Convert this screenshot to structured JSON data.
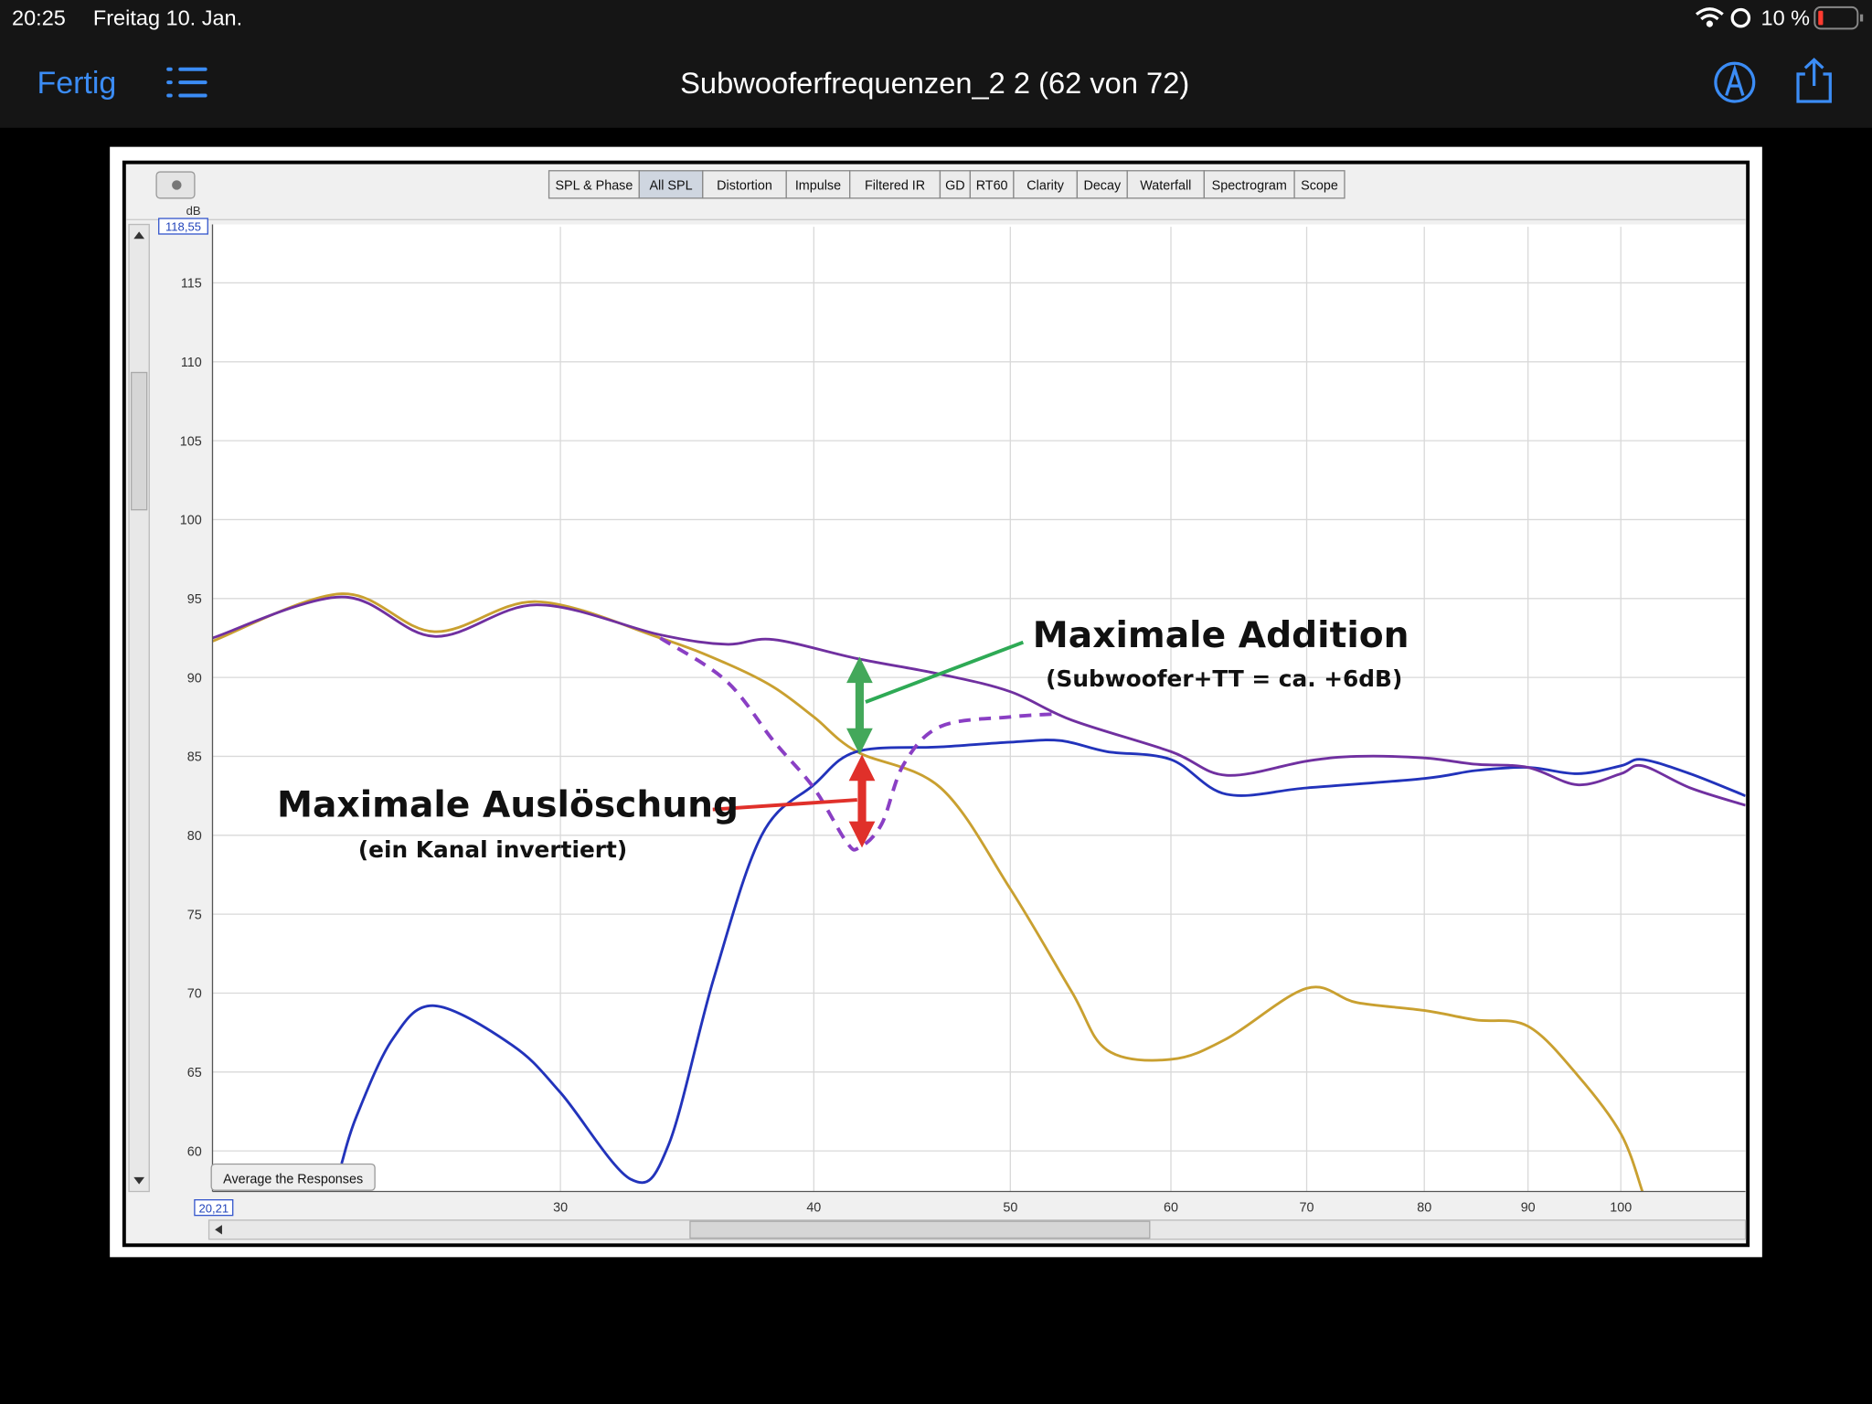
{
  "status_bar": {
    "time": "20:25",
    "date": "Freitag 10. Jan.",
    "battery": "10 %"
  },
  "nav_bar": {
    "done": "Fertig",
    "title": "Subwooferfrequenzen_2 2 (62 von 72)"
  },
  "toolbar": {
    "tabs": [
      "SPL & Phase",
      "All SPL",
      "Distortion",
      "Impulse",
      "Filtered IR",
      "GD",
      "RT60",
      "Clarity",
      "Decay",
      "Waterfall",
      "Spectrogram",
      "Scope"
    ],
    "selected": 1
  },
  "button": "Average the Responses",
  "chart_data": {
    "type": "line",
    "y_unit": "dB",
    "xscale": "log",
    "grid": true,
    "xlim": [
      20.21,
      115.2
    ],
    "ylim": [
      57.43,
      118.55
    ],
    "x_left_label": {
      "value": 20.21,
      "label": "20,21"
    },
    "y_top_label": {
      "value": 118.55,
      "label": "118,55"
    },
    "xticks": [
      30,
      40,
      50,
      60,
      70,
      80,
      90,
      100
    ],
    "yticks": [
      60,
      65,
      70,
      75,
      80,
      85,
      90,
      95,
      100,
      105,
      110,
      115
    ],
    "series": [
      {
        "color": "#c9a030",
        "x": [
          20.21,
          23.4,
          26.0,
          29.2,
          33.6,
          36.2,
          38.2,
          40,
          42.0,
          46.2,
          50,
          53.6,
          55.8,
          60,
          63.9,
          70,
          74.1,
          80,
          84.8,
          90,
          95.2,
          100,
          102.5
        ],
        "values": [
          92.3,
          95.3,
          92.9,
          94.8,
          92.5,
          90.9,
          89.4,
          87.5,
          85.3,
          83.0,
          76.6,
          70.1,
          66.4,
          65.8,
          67.1,
          70.3,
          69.4,
          68.9,
          68.3,
          67.9,
          64.8,
          61.1,
          57.4
        ]
      },
      {
        "color": "#2233bb",
        "x": [
          23.4,
          23.8,
          24.8,
          26.0,
          28.4,
          30,
          32.5,
          33.9,
          35.7,
          37.7,
          40,
          42.0,
          46.2,
          50,
          52.9,
          55.8,
          60,
          63.9,
          70,
          80,
          84.8,
          90,
          95.2,
          100,
          102.5,
          108.2,
          115.2
        ],
        "values": [
          59.2,
          62.2,
          67.1,
          69.2,
          66.7,
          63.7,
          58.2,
          60.3,
          70.9,
          80.0,
          83.2,
          85.3,
          85.6,
          85.9,
          86.0,
          85.3,
          84.8,
          82.6,
          83.0,
          83.6,
          84.1,
          84.3,
          83.9,
          84.4,
          84.8,
          83.9,
          82.5
        ]
      },
      {
        "color": "#7030a0",
        "x": [
          20.21,
          23.4,
          26.0,
          29.2,
          33.6,
          36.2,
          38.2,
          42.0,
          46.2,
          50,
          53.6,
          60,
          63.9,
          70,
          74.1,
          80,
          84.8,
          90,
          95.2,
          100,
          102.5,
          108.2,
          115.2
        ],
        "values": [
          92.5,
          95.1,
          92.6,
          94.6,
          92.7,
          92.1,
          92.4,
          91.2,
          90.2,
          89.1,
          87.3,
          85.3,
          83.8,
          84.7,
          85.0,
          84.9,
          84.5,
          84.3,
          83.2,
          83.9,
          84.4,
          83.0,
          81.9
        ]
      },
      {
        "color": "#8a3fc4",
        "dashed": true,
        "x": [
          33.6,
          36.2,
          38.2,
          40,
          41.5,
          42.1,
          43.2,
          44.3,
          46.2,
          50,
          52.9
        ],
        "values": [
          92.5,
          89.8,
          86.0,
          83.0,
          79.6,
          79.2,
          80.7,
          84.5,
          86.9,
          87.5,
          87.7
        ]
      }
    ],
    "annotations": [
      "Maximale Addition",
      "(Subwoofer+TT =  ca. +6dB)",
      "Maximale Auslöschung",
      "(ein Kanal invertiert)"
    ]
  }
}
